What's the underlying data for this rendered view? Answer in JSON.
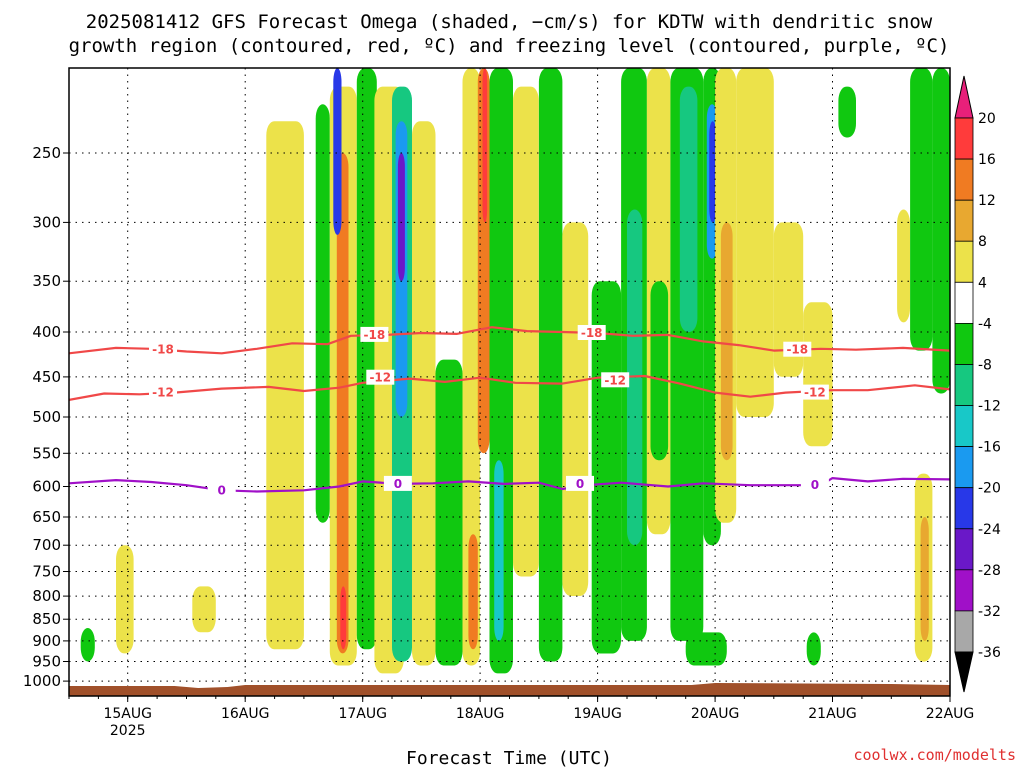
{
  "chart_data": {
    "type": "heatmap",
    "title": {
      "line1": "2025081412 GFS Forecast Omega (shaded, −cm/s) for KDTW with dendritic snow",
      "line2": "growth region (contoured, red, ºC) and freezing level (contoured, purple, ºC)"
    },
    "xlabel": "Forecast Time (UTC)",
    "credit": "coolwx.com/modelts",
    "y_axis": {
      "scale": "log-pressure",
      "inverted": true,
      "range": [
        1040,
        200
      ],
      "ticks": [
        250,
        300,
        350,
        400,
        450,
        500,
        550,
        600,
        650,
        700,
        750,
        800,
        850,
        900,
        950,
        1000
      ]
    },
    "x_axis": {
      "range_days": [
        "14AUG 12",
        "22AUG 00"
      ],
      "ticks": [
        {
          "day": 15,
          "label": "15AUG",
          "sub": "2025"
        },
        {
          "day": 16,
          "label": "16AUG",
          "sub": ""
        },
        {
          "day": 17,
          "label": "17AUG",
          "sub": ""
        },
        {
          "day": 18,
          "label": "18AUG",
          "sub": ""
        },
        {
          "day": 19,
          "label": "19AUG",
          "sub": ""
        },
        {
          "day": 20,
          "label": "20AUG",
          "sub": ""
        },
        {
          "day": 21,
          "label": "21AUG",
          "sub": ""
        },
        {
          "day": 22,
          "label": "22AUG",
          "sub": ""
        }
      ]
    },
    "grid": true,
    "colorbar": {
      "labels": [
        "20",
        "16",
        "12",
        "8",
        "4",
        "-4",
        "-8",
        "-12",
        "-16",
        "-20",
        "-24",
        "-28",
        "-32",
        "-36"
      ],
      "bins": [
        {
          "lo": 20,
          "hi": null,
          "color": "#e8207a"
        },
        {
          "lo": 16,
          "hi": 20,
          "color": "#ff3b3b"
        },
        {
          "lo": 12,
          "hi": 16,
          "color": "#f07b22"
        },
        {
          "lo": 8,
          "hi": 12,
          "color": "#e8a830"
        },
        {
          "lo": 4,
          "hi": 8,
          "color": "#ece24a"
        },
        {
          "lo": -4,
          "hi": 4,
          "color": "#ffffff"
        },
        {
          "lo": -8,
          "hi": -4,
          "color": "#10c810"
        },
        {
          "lo": -12,
          "hi": -8,
          "color": "#16c880"
        },
        {
          "lo": -16,
          "hi": -12,
          "color": "#18c8c8"
        },
        {
          "lo": -20,
          "hi": -16,
          "color": "#1a9af0"
        },
        {
          "lo": -24,
          "hi": -20,
          "color": "#2838e8"
        },
        {
          "lo": -28,
          "hi": -24,
          "color": "#6a18c8"
        },
        {
          "lo": -32,
          "hi": -28,
          "color": "#a010c8"
        },
        {
          "lo": -36,
          "hi": -32,
          "color": "#a8a8a8"
        },
        {
          "lo": null,
          "hi": -36,
          "color": "#000000"
        }
      ]
    },
    "ground_color": "#a0502a",
    "contours": [
      {
        "value": -18,
        "label": "-18",
        "color": "#f04848",
        "points": [
          [
            14.5,
            423
          ],
          [
            14.9,
            417
          ],
          [
            15.2,
            418
          ],
          [
            15.5,
            421
          ],
          [
            15.8,
            423
          ],
          [
            16.1,
            418
          ],
          [
            16.4,
            412
          ],
          [
            16.7,
            413
          ],
          [
            16.9,
            404
          ],
          [
            17.2,
            403
          ],
          [
            17.5,
            401
          ],
          [
            17.8,
            402
          ],
          [
            18.1,
            395
          ],
          [
            18.4,
            399
          ],
          [
            18.7,
            400
          ],
          [
            19.0,
            401
          ],
          [
            19.3,
            404
          ],
          [
            19.6,
            403
          ],
          [
            19.9,
            410
          ],
          [
            20.2,
            414
          ],
          [
            20.5,
            420
          ],
          [
            20.9,
            418
          ],
          [
            21.2,
            419
          ],
          [
            21.6,
            417
          ],
          [
            22.0,
            420
          ]
        ],
        "label_at": [
          [
            15.3,
            419
          ],
          [
            17.1,
            403
          ],
          [
            18.95,
            401
          ],
          [
            20.7,
            419
          ]
        ]
      },
      {
        "value": -12,
        "label": "-12",
        "color": "#f04848",
        "points": [
          [
            14.5,
            478
          ],
          [
            14.8,
            470
          ],
          [
            15.1,
            471
          ],
          [
            15.4,
            469
          ],
          [
            15.8,
            464
          ],
          [
            16.2,
            462
          ],
          [
            16.5,
            467
          ],
          [
            16.8,
            463
          ],
          [
            17.0,
            457
          ],
          [
            17.4,
            452
          ],
          [
            17.7,
            456
          ],
          [
            18.0,
            451
          ],
          [
            18.3,
            457
          ],
          [
            18.7,
            458
          ],
          [
            19.0,
            451
          ],
          [
            19.4,
            449
          ],
          [
            19.7,
            458
          ],
          [
            20.0,
            469
          ],
          [
            20.3,
            474
          ],
          [
            20.6,
            469
          ],
          [
            21.0,
            466
          ],
          [
            21.3,
            466
          ],
          [
            21.7,
            460
          ],
          [
            22.0,
            465
          ]
        ],
        "label_at": [
          [
            15.3,
            469
          ],
          [
            17.15,
            451
          ],
          [
            19.15,
            454
          ],
          [
            20.85,
            469
          ]
        ]
      },
      {
        "value": 0,
        "label": "0",
        "color": "#a010c8",
        "points": [
          [
            14.5,
            595
          ],
          [
            14.9,
            590
          ],
          [
            15.2,
            593
          ],
          [
            15.5,
            598
          ],
          [
            15.8,
            606
          ],
          [
            16.1,
            608
          ],
          [
            16.5,
            606
          ],
          [
            16.8,
            600
          ],
          [
            17.0,
            592
          ],
          [
            17.3,
            596
          ],
          [
            17.6,
            595
          ],
          [
            17.9,
            592
          ],
          [
            18.2,
            596
          ],
          [
            18.5,
            594
          ],
          [
            18.7,
            604
          ],
          [
            18.9,
            598
          ],
          [
            19.2,
            594
          ],
          [
            19.6,
            600
          ],
          [
            19.9,
            595
          ],
          [
            20.3,
            598
          ],
          [
            20.6,
            598
          ],
          [
            20.9,
            598
          ],
          [
            21.0,
            587
          ],
          [
            21.3,
            592
          ],
          [
            21.6,
            588
          ],
          [
            22.0,
            589
          ]
        ],
        "label_at": [
          [
            15.8,
            606
          ],
          [
            17.3,
            596
          ],
          [
            18.85,
            596
          ],
          [
            20.85,
            598
          ]
        ]
      }
    ],
    "omega_regions": [
      {
        "x": [
          16.18,
          16.5
        ],
        "p": [
          230,
          920
        ],
        "v": 6
      },
      {
        "x": [
          16.6,
          16.72
        ],
        "p": [
          220,
          660
        ],
        "v": -6
      },
      {
        "x": [
          16.72,
          16.95
        ],
        "p": [
          210,
          960
        ],
        "v": 6
      },
      {
        "x": [
          16.78,
          16.88
        ],
        "p": [
          250,
          930
        ],
        "v": 12
      },
      {
        "x": [
          16.81,
          16.86
        ],
        "p": [
          780,
          920
        ],
        "v": 17
      },
      {
        "x": [
          16.75,
          16.82
        ],
        "p": [
          200,
          310
        ],
        "v": -22
      },
      {
        "x": [
          16.95,
          17.12
        ],
        "p": [
          200,
          920
        ],
        "v": -6
      },
      {
        "x": [
          17.1,
          17.35
        ],
        "p": [
          210,
          980
        ],
        "v": 6
      },
      {
        "x": [
          17.25,
          17.42
        ],
        "p": [
          210,
          950
        ],
        "v": -10
      },
      {
        "x": [
          17.28,
          17.38
        ],
        "p": [
          230,
          500
        ],
        "v": -18
      },
      {
        "x": [
          17.3,
          17.36
        ],
        "p": [
          250,
          350
        ],
        "v": -26
      },
      {
        "x": [
          17.42,
          17.62
        ],
        "p": [
          230,
          960
        ],
        "v": 6
      },
      {
        "x": [
          17.62,
          17.85
        ],
        "p": [
          430,
          960
        ],
        "v": -6
      },
      {
        "x": [
          17.85,
          18.0
        ],
        "p": [
          200,
          960
        ],
        "v": 6
      },
      {
        "x": [
          17.9,
          17.98
        ],
        "p": [
          680,
          920
        ],
        "v": 15
      },
      {
        "x": [
          17.98,
          18.08
        ],
        "p": [
          200,
          550
        ],
        "v": 13
      },
      {
        "x": [
          18.02,
          18.06
        ],
        "p": [
          200,
          300
        ],
        "v": 18
      },
      {
        "x": [
          18.08,
          18.28
        ],
        "p": [
          200,
          980
        ],
        "v": -7
      },
      {
        "x": [
          18.12,
          18.2
        ],
        "p": [
          560,
          900
        ],
        "v": -13
      },
      {
        "x": [
          18.28,
          18.5
        ],
        "p": [
          210,
          760
        ],
        "v": 6
      },
      {
        "x": [
          18.5,
          18.7
        ],
        "p": [
          200,
          950
        ],
        "v": -6
      },
      {
        "x": [
          18.7,
          18.92
        ],
        "p": [
          300,
          800
        ],
        "v": 6
      },
      {
        "x": [
          18.95,
          19.2
        ],
        "p": [
          350,
          930
        ],
        "v": -6
      },
      {
        "x": [
          19.2,
          19.42
        ],
        "p": [
          200,
          900
        ],
        "v": -6
      },
      {
        "x": [
          19.25,
          19.38
        ],
        "p": [
          290,
          700
        ],
        "v": -10
      },
      {
        "x": [
          19.42,
          19.62
        ],
        "p": [
          200,
          680
        ],
        "v": 6
      },
      {
        "x": [
          19.45,
          19.6
        ],
        "p": [
          350,
          560
        ],
        "v": -7
      },
      {
        "x": [
          19.62,
          19.9
        ],
        "p": [
          200,
          900
        ],
        "v": -6
      },
      {
        "x": [
          19.7,
          19.85
        ],
        "p": [
          210,
          400
        ],
        "v": -9
      },
      {
        "x": [
          19.9,
          20.05
        ],
        "p": [
          200,
          700
        ],
        "v": -8
      },
      {
        "x": [
          19.93,
          20.02
        ],
        "p": [
          220,
          330
        ],
        "v": -17
      },
      {
        "x": [
          19.95,
          20.01
        ],
        "p": [
          230,
          300
        ],
        "v": -21
      },
      {
        "x": [
          20.0,
          20.18
        ],
        "p": [
          200,
          660
        ],
        "v": 7
      },
      {
        "x": [
          20.05,
          20.15
        ],
        "p": [
          300,
          560
        ],
        "v": 10
      },
      {
        "x": [
          19.75,
          20.1
        ],
        "p": [
          880,
          960
        ],
        "v": -6
      },
      {
        "x": [
          20.18,
          20.5
        ],
        "p": [
          200,
          500
        ],
        "v": 6
      },
      {
        "x": [
          20.5,
          20.75
        ],
        "p": [
          300,
          450
        ],
        "v": 5
      },
      {
        "x": [
          20.75,
          21.0
        ],
        "p": [
          370,
          540
        ],
        "v": 6
      },
      {
        "x": [
          20.78,
          20.9
        ],
        "p": [
          880,
          960
        ],
        "v": -7
      },
      {
        "x": [
          21.05,
          21.2
        ],
        "p": [
          210,
          240
        ],
        "v": -6
      },
      {
        "x": [
          21.55,
          21.66
        ],
        "p": [
          290,
          390
        ],
        "v": 5
      },
      {
        "x": [
          21.66,
          21.85
        ],
        "p": [
          200,
          420
        ],
        "v": -6
      },
      {
        "x": [
          21.7,
          21.85
        ],
        "p": [
          580,
          950
        ],
        "v": 6
      },
      {
        "x": [
          21.75,
          21.82
        ],
        "p": [
          650,
          900
        ],
        "v": 11
      },
      {
        "x": [
          21.85,
          22.0
        ],
        "p": [
          200,
          470
        ],
        "v": -6
      },
      {
        "x": [
          14.9,
          15.05
        ],
        "p": [
          700,
          930
        ],
        "v": 6
      },
      {
        "x": [
          15.55,
          15.75
        ],
        "p": [
          780,
          880
        ],
        "v": 7
      },
      {
        "x": [
          14.6,
          14.72
        ],
        "p": [
          870,
          950
        ],
        "v": -6
      }
    ]
  }
}
